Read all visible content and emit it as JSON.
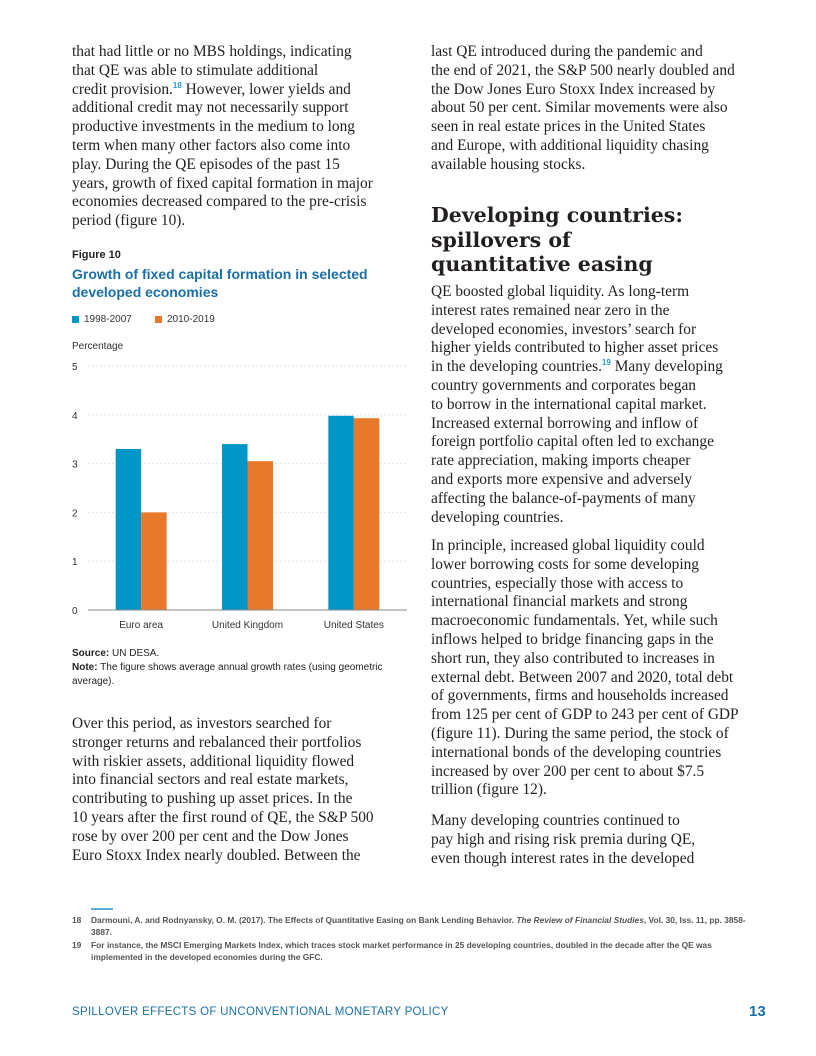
{
  "left_column": {
    "para1_a": "that had little or no MBS holdings, indicating\nthat QE was able to stimulate additional\ncredit provision.",
    "para1_sup": "18",
    "para1_b": " However, lower yields and\nadditional credit may not necessarily support\nproductive investments in the medium to long\nterm when many other factors also come into\nplay. During the QE episodes of the past 15\nyears, growth of fixed capital formation in major\neconomies decreased compared to the pre-crisis\nperiod (figure 10).",
    "para2": "Over this period, as investors searched for\nstronger returns and rebalanced their portfolios\nwith riskier assets, additional liquidity flowed\ninto financial sectors and real estate markets,\ncontributing to pushing up asset prices. In the\n10 years after the first round of QE, the S&P 500\nrose by over 200 per cent and the Dow Jones\nEuro Stoxx Index nearly doubled. Between the"
  },
  "figure": {
    "label": "Figure 10",
    "title": "Growth of fixed capital formation in selected\ndeveloped economies",
    "source_label": "Source:",
    "source_text": " UN DESA.",
    "note_label": "Note:",
    "note_text": " The figure shows average annual growth rates (using geometric average)."
  },
  "chart_data": {
    "type": "bar",
    "title": "Growth of fixed capital formation in selected developed economies",
    "ylabel": "Percentage",
    "xlabel": "",
    "categories": [
      "Euro area",
      "United Kingdom",
      "United States"
    ],
    "series": [
      {
        "name": "1998-2007",
        "color": "#0096c8",
        "values": [
          3.3,
          3.4,
          3.98
        ]
      },
      {
        "name": "2010-2019",
        "color": "#e8792b",
        "values": [
          2.0,
          3.05,
          3.93
        ]
      }
    ],
    "ylim": [
      0,
      5
    ],
    "yticks": [
      "0",
      "1",
      "2",
      "3",
      "4",
      "5"
    ],
    "grid": true,
    "legend": "top-left"
  },
  "right_column": {
    "para1": "last QE introduced during the pandemic and\nthe end of 2021, the S&P 500 nearly doubled and\nthe Dow Jones Euro Stoxx Index increased by\nabout 50 per cent. Similar movements were also\nseen in real estate prices in the United States\nand Europe, with additional liquidity chasing\navailable housing stocks.",
    "heading": "Developing countries:\nspillovers of\nquantitative easing",
    "para2_a": "QE boosted global liquidity. As long-term\ninterest rates remained near zero in the\ndeveloped economies, investors’ search for\nhigher yields contributed to higher asset prices\nin the developing countries.",
    "para2_sup": "19",
    "para2_b": " Many developing\ncountry governments and corporates began\nto borrow in the international capital market.\nIncreased external borrowing and inflow of\nforeign portfolio capital often led to exchange\nrate appreciation, making imports cheaper\nand exports more expensive and adversely\naffecting the balance-of-payments of many\ndeveloping countries.",
    "para3": "In principle, increased global liquidity could\nlower borrowing costs for some developing\ncountries, especially those with access to\ninternational financial markets and strong\nmacroeconomic fundamentals. Yet, while such\ninflows helped to bridge financing gaps in the\nshort run, they also contributed to increases in\nexternal debt. Between 2007 and 2020, total debt\nof governments, firms and households increased\nfrom 125 per cent of GDP to 243 per cent of GDP\n(figure 11). During the same period, the stock of\ninternational bonds of the developing countries\nincreased by over 200 per cent to about $7.5\ntrillion (figure 12).",
    "para4": "Many developing countries continued to\npay high and rising risk premia during QE,\neven though interest rates in the developed"
  },
  "footnotes": [
    {
      "num": "18",
      "text_a": "Darmouni, A. and Rodnyansky, O. M. (2017). The Effects of Quantitative Easing on Bank Lending Behavior. ",
      "text_italic": "The Review of Financial Studies",
      "text_b": ", Vol. 30, Iss. 11, pp. 3858-3887."
    },
    {
      "num": "19",
      "text_a": "For instance, the MSCI Emerging Markets Index, which traces stock market performance in 25 developing countries, doubled in the decade after the QE was implemented in the developed economies during the GFC.",
      "text_italic": "",
      "text_b": ""
    }
  ],
  "footer": {
    "title": "SPILLOVER EFFECTS OF UNCONVENTIONAL MONETARY POLICY",
    "page_number": "13"
  }
}
